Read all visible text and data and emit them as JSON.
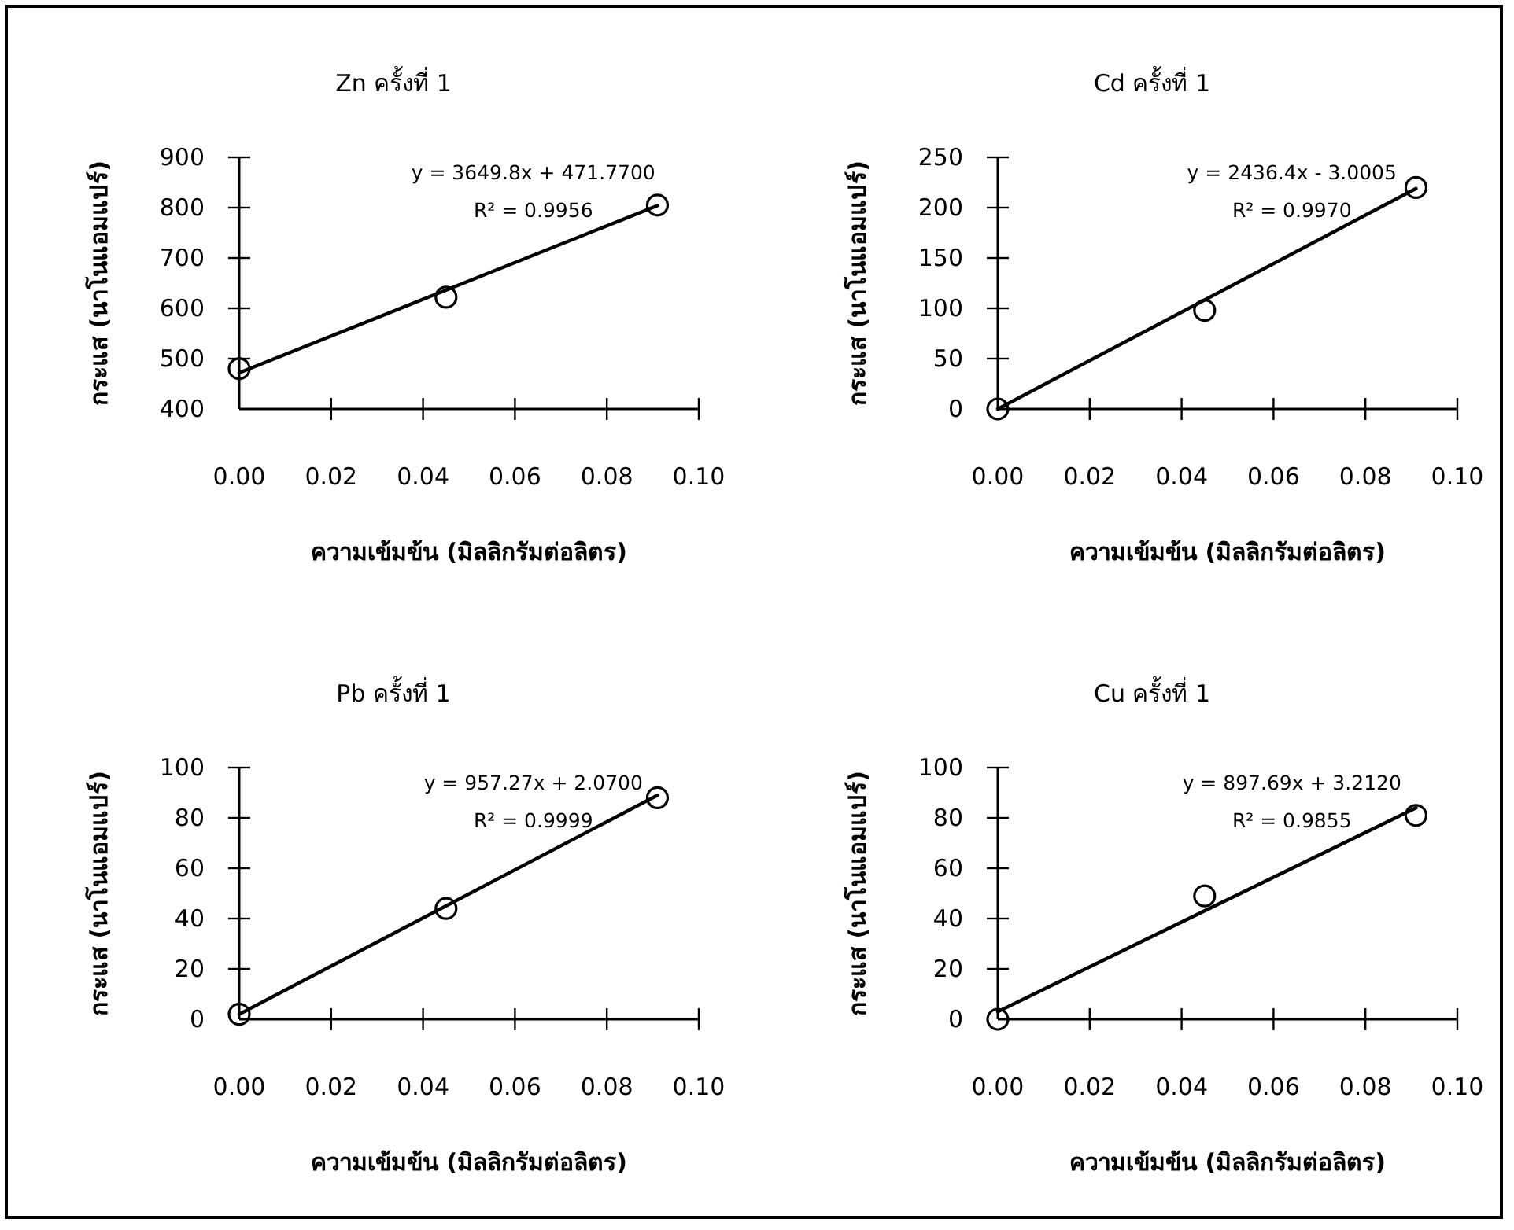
{
  "chart_data": [
    {
      "type": "scatter",
      "title": "Zn ครั้งที่ 1",
      "xlabel": "ความเข้มข้น (มิลลิกรัมต่อลิตร)",
      "ylabel": "กระแส (นาโนแอมแปร์)",
      "xlim": [
        0,
        0.1
      ],
      "xticks": [
        {
          "value": 0,
          "label": "0.00"
        },
        {
          "value": 0.02,
          "label": "0.02"
        },
        {
          "value": 0.04,
          "label": "0.04"
        },
        {
          "value": 0.06,
          "label": "0.06"
        },
        {
          "value": 0.08,
          "label": "0.08"
        },
        {
          "value": 0.1,
          "label": "0.10"
        }
      ],
      "ylim": [
        400,
        900
      ],
      "yticks": [
        400,
        500,
        600,
        700,
        800,
        900
      ],
      "marker": "circle",
      "grid": false,
      "series": [
        {
          "x": [
            0,
            0.045,
            0.091
          ],
          "values": [
            480,
            622,
            805
          ],
          "color": "#000000"
        },
        {
          "type": "line",
          "marker": "none",
          "x": [
            0,
            0.091
          ],
          "values": [
            472,
            804
          ],
          "color": "#000000"
        }
      ],
      "annotations": [
        "y = 3649.8x + 471.7700",
        "R² = 0.9956"
      ]
    },
    {
      "type": "scatter",
      "title": "Cd ครั้งที่ 1",
      "xlabel": "ความเข้มข้น (มิลลิกรัมต่อลิตร)",
      "ylabel": "กระแส (นาโนแอมแปร์)",
      "xlim": [
        0,
        0.1
      ],
      "xticks": [
        {
          "value": 0,
          "label": "0.00"
        },
        {
          "value": 0.02,
          "label": "0.02"
        },
        {
          "value": 0.04,
          "label": "0.04"
        },
        {
          "value": 0.06,
          "label": "0.06"
        },
        {
          "value": 0.08,
          "label": "0.08"
        },
        {
          "value": 0.1,
          "label": "0.10"
        }
      ],
      "ylim": [
        0,
        250
      ],
      "yticks": [
        0,
        50,
        100,
        150,
        200,
        250
      ],
      "marker": "circle",
      "grid": false,
      "series": [
        {
          "x": [
            0,
            0.045,
            0.091
          ],
          "values": [
            0,
            98,
            220
          ],
          "color": "#000000"
        },
        {
          "type": "line",
          "marker": "none",
          "x": [
            0,
            0.091
          ],
          "values": [
            0,
            219
          ],
          "color": "#000000"
        }
      ],
      "annotations": [
        "y = 2436.4x - 3.0005",
        "R² = 0.9970"
      ]
    },
    {
      "type": "scatter",
      "title": "Pb ครั้งที่ 1",
      "xlabel": "ความเข้มข้น (มิลลิกรัมต่อลิตร)",
      "ylabel": "กระแส (นาโนแอมแปร์)",
      "xlim": [
        0,
        0.1
      ],
      "xticks": [
        {
          "value": 0,
          "label": "0.00"
        },
        {
          "value": 0.02,
          "label": "0.02"
        },
        {
          "value": 0.04,
          "label": "0.04"
        },
        {
          "value": 0.06,
          "label": "0.06"
        },
        {
          "value": 0.08,
          "label": "0.08"
        },
        {
          "value": 0.1,
          "label": "0.10"
        }
      ],
      "ylim": [
        0,
        100
      ],
      "yticks": [
        0,
        20,
        40,
        60,
        80,
        100
      ],
      "marker": "circle",
      "grid": false,
      "series": [
        {
          "x": [
            0,
            0.045,
            0.091
          ],
          "values": [
            2,
            44,
            88
          ],
          "color": "#000000"
        },
        {
          "type": "line",
          "marker": "none",
          "x": [
            0,
            0.091
          ],
          "values": [
            2,
            89
          ],
          "color": "#000000"
        }
      ],
      "annotations": [
        "y = 957.27x + 2.0700",
        "R² = 0.9999"
      ]
    },
    {
      "type": "scatter",
      "title": "Cu ครั้งที่ 1",
      "xlabel": "ความเข้มข้น (มิลลิกรัมต่อลิตร)",
      "ylabel": "กระแส (นาโนแอมแปร์)",
      "xlim": [
        0,
        0.1
      ],
      "xticks": [
        {
          "value": 0,
          "label": "0.00"
        },
        {
          "value": 0.02,
          "label": "0.02"
        },
        {
          "value": 0.04,
          "label": "0.04"
        },
        {
          "value": 0.06,
          "label": "0.06"
        },
        {
          "value": 0.08,
          "label": "0.08"
        },
        {
          "value": 0.1,
          "label": "0.10"
        }
      ],
      "ylim": [
        0,
        100
      ],
      "yticks": [
        0,
        20,
        40,
        60,
        80,
        100
      ],
      "marker": "circle",
      "grid": false,
      "series": [
        {
          "x": [
            0,
            0.045,
            0.091
          ],
          "values": [
            0,
            49,
            81
          ],
          "color": "#000000"
        },
        {
          "type": "line",
          "marker": "none",
          "x": [
            0,
            0.091
          ],
          "values": [
            3,
            84
          ],
          "color": "#000000"
        }
      ],
      "annotations": [
        "y = 897.69x + 3.2120",
        "R² = 0.9855"
      ]
    }
  ]
}
